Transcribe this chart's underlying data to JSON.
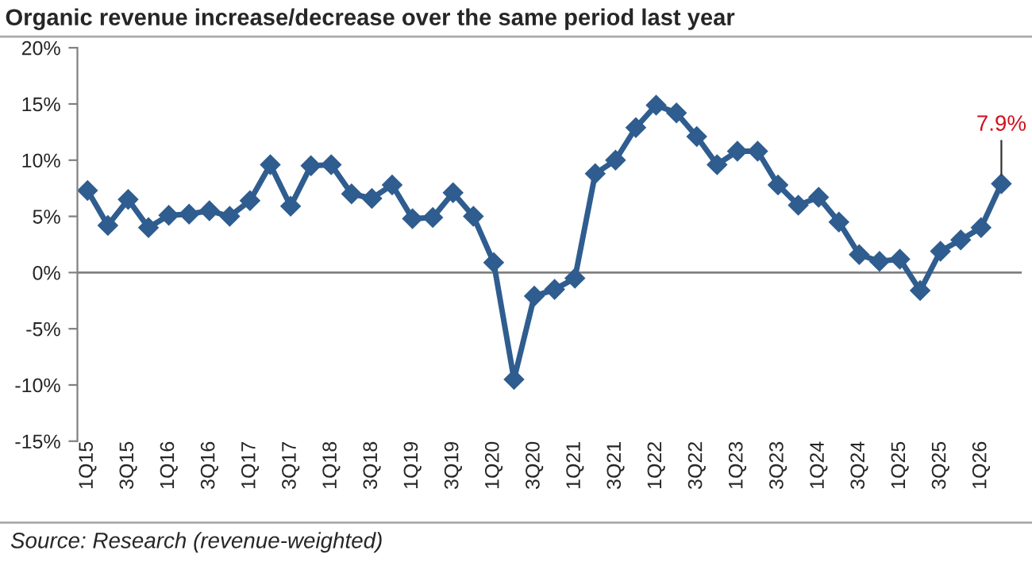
{
  "chart_data": {
    "type": "line",
    "title": "Organic revenue increase/decrease over the same period last year",
    "categories": [
      "1Q15",
      null,
      "3Q15",
      null,
      "1Q16",
      null,
      "3Q16",
      null,
      "1Q17",
      null,
      "3Q17",
      null,
      "1Q18",
      null,
      "3Q18",
      null,
      "1Q19",
      null,
      "3Q19",
      null,
      "1Q20",
      null,
      "3Q20",
      null,
      "1Q21",
      null,
      "3Q21",
      null,
      "1Q22",
      null,
      "3Q22",
      null,
      "1Q23",
      null,
      "3Q23",
      null,
      "1Q24",
      null,
      "3Q24",
      null,
      "1Q25",
      null,
      "3Q25",
      null,
      "1Q26",
      null
    ],
    "series": [
      {
        "color": "#2f5d8f",
        "values": [
          7.3,
          4.2,
          6.5,
          4.0,
          5.1,
          5.2,
          5.5,
          5.0,
          6.4,
          9.6,
          5.9,
          9.5,
          9.6,
          7.0,
          6.6,
          7.8,
          4.8,
          4.9,
          7.1,
          5.0,
          0.9,
          -9.5,
          -2.1,
          -1.5,
          -0.5,
          8.8,
          10.0,
          12.9,
          14.9,
          14.2,
          12.1,
          9.6,
          10.8,
          10.8,
          7.8,
          6.0,
          6.7,
          4.5,
          1.6,
          1.0,
          1.2,
          -1.6,
          1.9,
          2.9,
          4.0,
          7.9
        ],
        "value_labels": [
          null,
          null,
          null,
          null,
          null,
          null,
          null,
          null,
          null,
          null,
          null,
          null,
          null,
          null,
          null,
          null,
          null,
          null,
          null,
          null,
          null,
          null,
          null,
          null,
          null,
          null,
          null,
          null,
          null,
          null,
          null,
          null,
          null,
          null,
          null,
          null,
          null,
          null,
          null,
          null,
          null,
          null,
          null,
          null,
          null,
          "7.9%"
        ]
      }
    ],
    "ylim": [
      -15,
      20
    ],
    "yticks": [
      {
        "value": -15,
        "label": "-15%"
      },
      {
        "value": -10,
        "label": "-10%"
      },
      {
        "value": -5,
        "label": "-5%"
      },
      {
        "value": 0,
        "label": "0%"
      },
      {
        "value": 5,
        "label": "5%"
      },
      {
        "value": 10,
        "label": "10%"
      },
      {
        "value": 15,
        "label": "15%"
      },
      {
        "value": 20,
        "label": "20%"
      }
    ],
    "ref_lines": [
      {
        "axis": "y",
        "value": 0,
        "color": "#808080"
      }
    ],
    "marker": "diamond",
    "line_style": "solid",
    "grid": false,
    "legend": false,
    "annotations": [
      "Source: Research (revenue-weighted)"
    ]
  }
}
